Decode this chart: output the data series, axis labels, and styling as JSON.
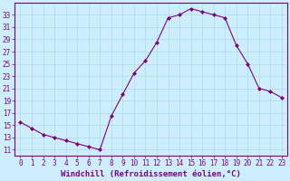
{
  "x": [
    0,
    1,
    2,
    3,
    4,
    5,
    6,
    7,
    8,
    9,
    10,
    11,
    12,
    13,
    14,
    15,
    16,
    17,
    18,
    19,
    20,
    21,
    22,
    23
  ],
  "y": [
    15.5,
    14.5,
    13.5,
    13.0,
    12.5,
    12.0,
    11.5,
    11.0,
    16.5,
    20.0,
    23.5,
    25.5,
    28.5,
    32.5,
    33.0,
    34.0,
    33.5,
    33.0,
    32.5,
    28.0,
    25.0,
    21.0,
    20.5,
    19.5
  ],
  "line_color": "#800080",
  "marker": "D",
  "marker_size": 2.0,
  "bg_color": "#cceeff",
  "grid_color": "#aadddd",
  "xlabel": "Windchill (Refroidissement éolien,°C)",
  "xlabel_fontsize": 6.5,
  "ylim": [
    10,
    35
  ],
  "xlim": [
    -0.5,
    23.5
  ],
  "yticks": [
    11,
    13,
    15,
    17,
    19,
    21,
    23,
    25,
    27,
    29,
    31,
    33
  ],
  "xticks": [
    0,
    1,
    2,
    3,
    4,
    5,
    6,
    7,
    8,
    9,
    10,
    11,
    12,
    13,
    14,
    15,
    16,
    17,
    18,
    19,
    20,
    21,
    22,
    23
  ],
  "tick_fontsize": 5.5,
  "tick_color": "#800080",
  "axis_color": "#800080",
  "spine_color": "#800080"
}
